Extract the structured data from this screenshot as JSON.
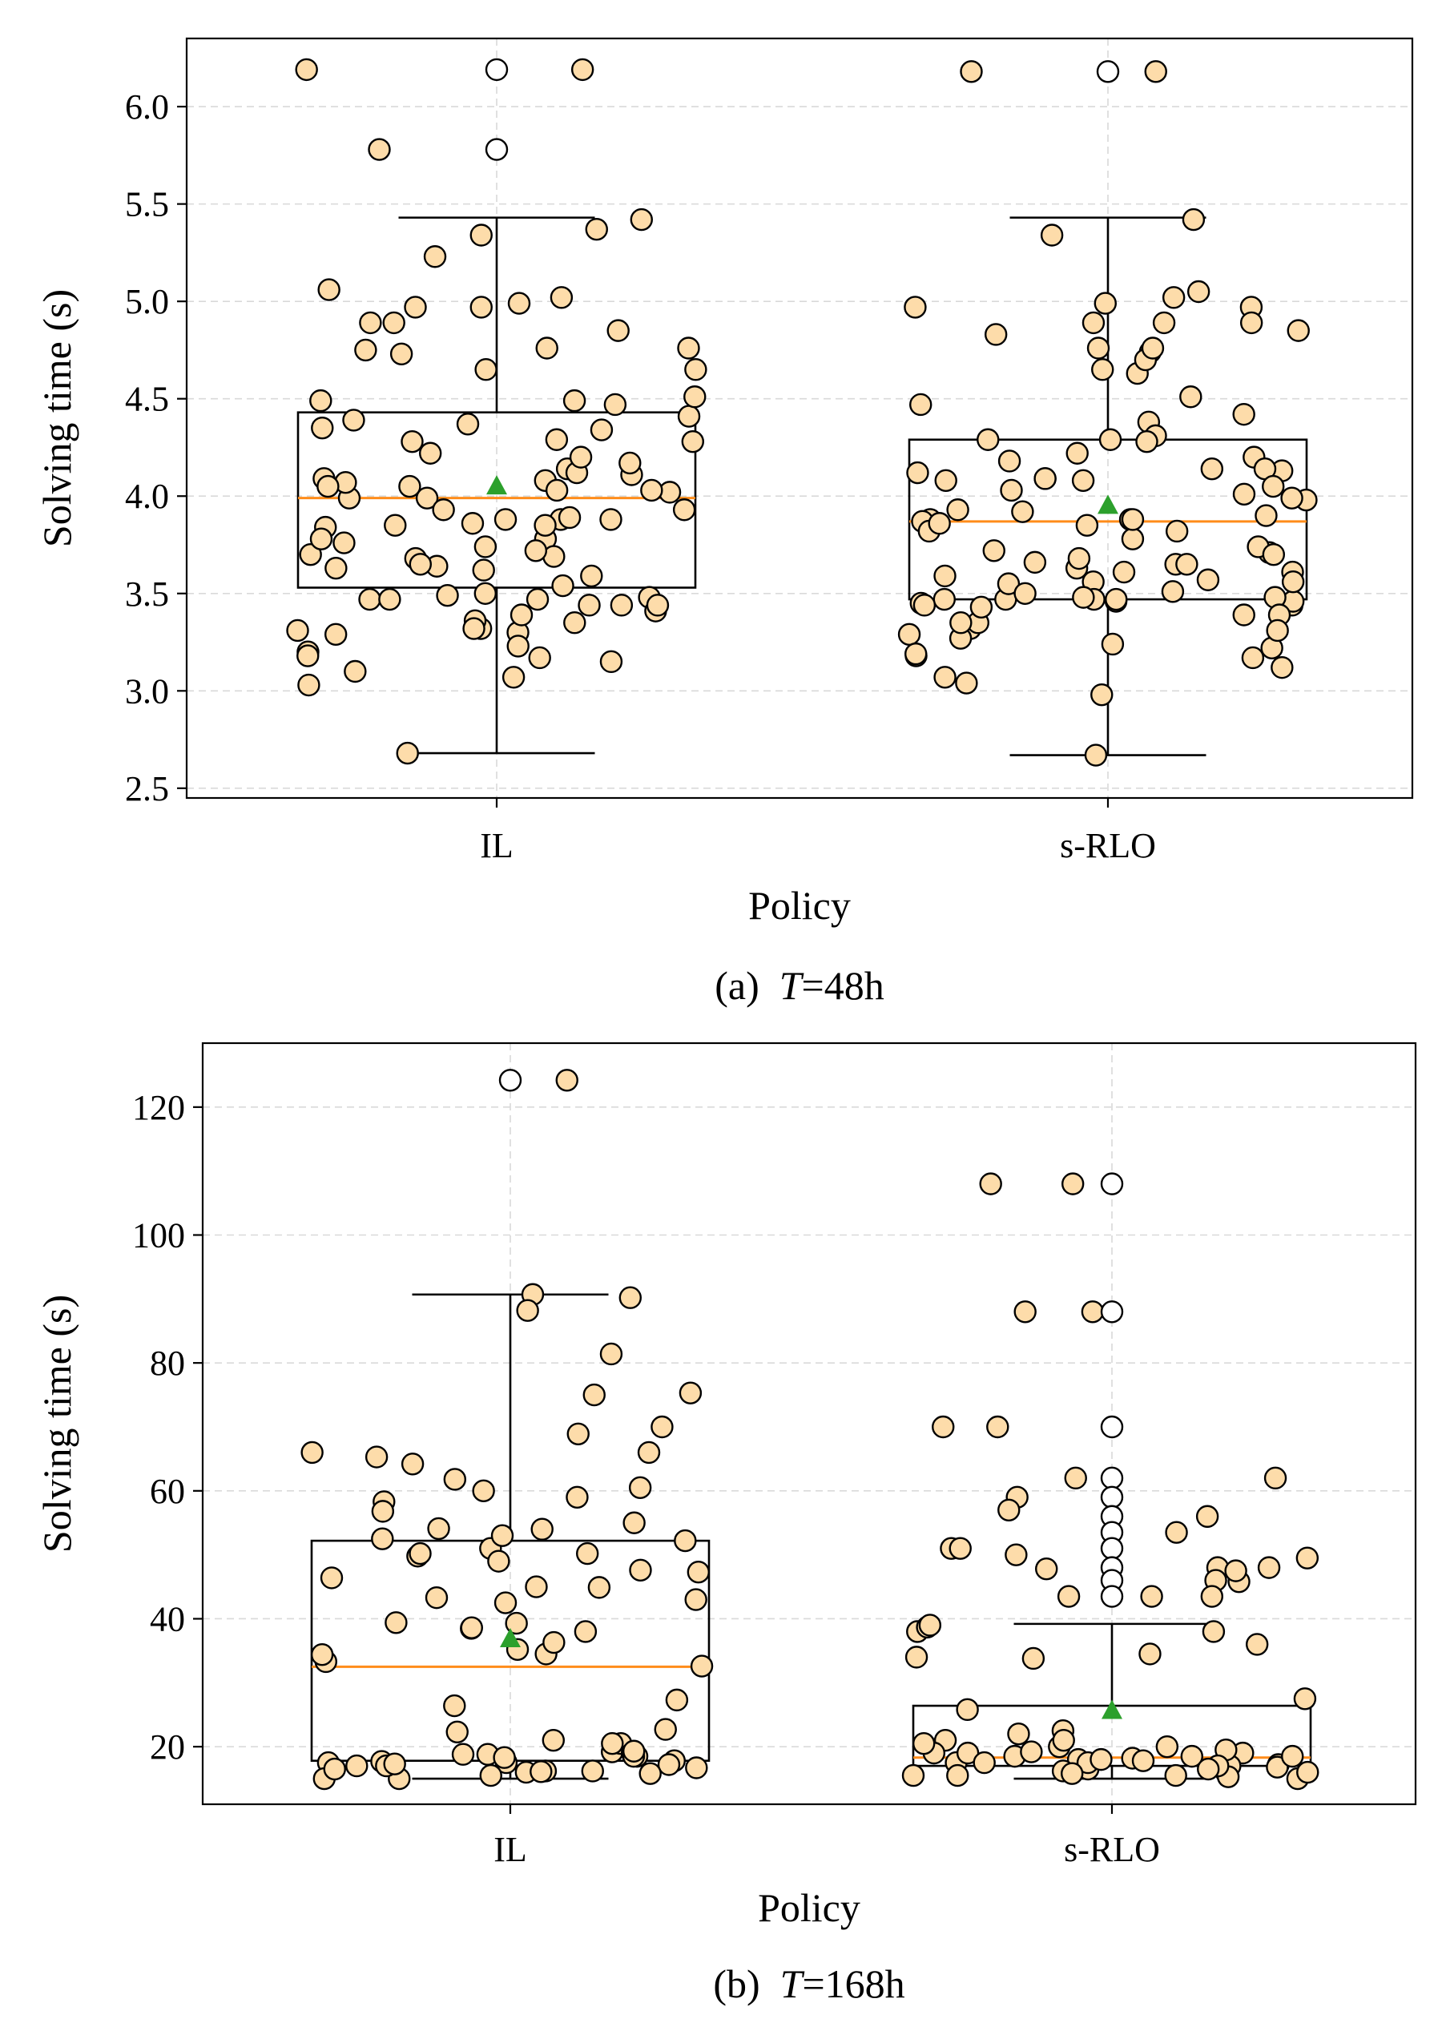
{
  "chart_data": [
    {
      "type": "box",
      "caption_prefix": "(a)  ",
      "caption_var": "T",
      "caption_suffix": "=48h",
      "xlabel": "Policy",
      "ylabel": "Solving time (s)",
      "ylim": [
        2.45,
        6.35
      ],
      "yticks": [
        "2.5",
        "3.0",
        "3.5",
        "4.0",
        "4.5",
        "5.0",
        "5.5",
        "6.0"
      ],
      "ytick_values": [
        2.5,
        3.0,
        3.5,
        4.0,
        4.5,
        5.0,
        5.5,
        6.0
      ],
      "grid": true,
      "categories": [
        "IL",
        "s-RLO"
      ],
      "boxes": [
        {
          "name": "IL",
          "whisker_low": 2.68,
          "q1": 3.53,
          "median": 3.99,
          "q3": 4.43,
          "whisker_high": 5.43,
          "mean": 4.05,
          "fliers": [
            6.19,
            5.78
          ],
          "points": [
            6.19,
            5.78,
            5.37,
            5.23,
            4.85,
            4.97,
            4.89,
            4.75,
            4.73,
            4.65,
            4.49,
            4.47,
            4.49,
            4.37,
            4.34,
            4.14,
            4.12,
            4.09,
            4.11,
            4.02,
            3.99,
            3.84,
            3.62,
            3.59,
            3.48,
            3.32,
            3.3,
            3.47,
            3.44,
            3.41,
            3.36,
            3.32,
            3.29,
            3.54,
            3.64,
            3.68,
            3.78,
            3.88,
            3.88,
            3.93,
            3.99,
            4.03,
            4.07,
            4.08,
            4.22,
            4.35,
            4.41,
            4.51,
            5.42,
            5.34,
            4.97,
            4.89,
            4.39,
            4.28,
            4.05,
            3.93,
            3.86,
            3.76,
            3.7,
            3.47,
            3.39,
            2.68,
            3.17,
            3.1,
            3.2,
            3.23,
            3.18,
            3.15,
            3.35,
            3.44,
            3.49,
            3.5,
            3.63,
            3.65,
            3.69,
            3.74,
            3.78,
            3.85,
            3.89,
            4.03,
            4.28,
            4.76,
            5.02,
            4.99,
            4.65,
            5.06,
            4.76,
            4.29,
            4.17,
            4.2,
            4.05,
            3.85,
            3.72,
            3.47,
            3.44,
            3.31,
            3.07,
            3.03,
            3.88,
            6.19
          ]
        },
        {
          "name": "s-RLO",
          "whisker_low": 2.67,
          "q1": 3.47,
          "median": 3.87,
          "q3": 4.29,
          "whisker_high": 5.43,
          "mean": 3.95,
          "fliers": [
            6.18
          ],
          "points": [
            5.05,
            4.97,
            4.85,
            4.99,
            4.89,
            4.76,
            4.74,
            4.63,
            4.47,
            4.18,
            4.14,
            4.12,
            4.09,
            4.13,
            4.01,
            3.93,
            3.85,
            3.61,
            3.59,
            3.63,
            3.57,
            3.46,
            3.47,
            3.44,
            3.47,
            3.32,
            3.27,
            3.46,
            3.48,
            3.45,
            3.51,
            3.55,
            3.61,
            3.56,
            3.65,
            3.71,
            3.35,
            3.29,
            3.24,
            3.22,
            3.39,
            3.47,
            2.67,
            3.74,
            3.88,
            3.87,
            3.92,
            3.98,
            4.08,
            4.08,
            4.22,
            4.42,
            4.51,
            4.83,
            4.97,
            5.42,
            5.34,
            6.18,
            4.29,
            4.38,
            4.31,
            4.28,
            4.7,
            3.56,
            3.47,
            3.99,
            3.88,
            3.9,
            3.82,
            3.65,
            3.5,
            3.48,
            3.18,
            3.12,
            3.17,
            3.19,
            2.98,
            3.35,
            3.39,
            3.66,
            3.7,
            3.68,
            3.78,
            3.82,
            3.86,
            4.03,
            4.29,
            4.65,
            4.89,
            5.02,
            4.89,
            4.76,
            4.2,
            4.14,
            4.05,
            4.09,
            3.88,
            3.72,
            3.44,
            3.43,
            3.31,
            3.07,
            3.04,
            6.18
          ]
        }
      ]
    },
    {
      "type": "box",
      "caption_prefix": "(b)  ",
      "caption_var": "T",
      "caption_suffix": "=168h",
      "xlabel": "Policy",
      "ylabel": "Solving time (s)",
      "ylim": [
        11,
        130
      ],
      "yticks": [
        "20",
        "40",
        "60",
        "80",
        "100",
        "120"
      ],
      "ytick_values": [
        20,
        40,
        60,
        80,
        100,
        120
      ],
      "grid": true,
      "categories": [
        "IL",
        "s-RLO"
      ],
      "boxes": [
        {
          "name": "IL",
          "whisker_low": 15,
          "q1": 17.8,
          "median": 32.5,
          "q3": 52.2,
          "whisker_high": 90.7,
          "mean": 36.8,
          "fliers": [
            124.2
          ],
          "points": [
            81.4,
            66.0,
            65.3,
            52.2,
            51.0,
            47.6,
            46.4,
            33.3,
            21.0,
            17.5,
            16.2,
            15.0,
            18.5,
            19.2,
            17.8,
            22.7,
            90.7,
            88.2,
            90.2,
            75.3,
            61.8,
            59.0,
            53.0,
            50.2,
            49.8,
            43.3,
            38.0,
            34.5,
            22.3,
            20.5,
            18.8,
            17.5,
            16.0,
            18.3,
            17.2,
            19.0,
            75.0,
            64.2,
            55.0,
            54.0,
            58.3,
            52.5,
            38.5,
            36.3,
            27.3,
            32.6,
            42.5,
            43.0,
            20.5,
            18.5,
            17.0,
            16.2,
            15.0,
            19.3,
            17.7,
            15.8,
            16.5,
            70.0,
            68.9,
            56.8,
            54.1,
            49.0,
            45.0,
            39.4,
            39.3,
            38.6,
            35.2,
            34.4,
            44.9,
            47.3,
            60.5,
            60.0,
            50.2,
            66.0,
            26.4,
            18.8,
            17.0,
            16.1,
            15.5,
            16.7,
            17.3,
            124.2
          ]
        },
        {
          "name": "s-RLO",
          "whisker_low": 15,
          "q1": 17.0,
          "median": 18.3,
          "q3": 26.4,
          "whisker_high": 39.2,
          "mean": 25.6,
          "fliers": [
            108.0,
            88.0,
            70.0,
            62.0,
            59.0,
            56.0,
            53.5,
            51.0,
            48.0,
            46.0,
            43.5
          ],
          "points": [
            48.0,
            45.8,
            43.5,
            21.0,
            17.5,
            15.5,
            18.0,
            16.5,
            22.5,
            19.0,
            17.0,
            88.0,
            51.0,
            50.0,
            49.5,
            47.8,
            33.8,
            38.0,
            19.0,
            17.5,
            16.0,
            15.5,
            18.5,
            17.2,
            62.0,
            34.0,
            22.0,
            20.0,
            18.0,
            16.8,
            15.5,
            19.2,
            108.0,
            88.0,
            70.0,
            62.0,
            59.0,
            56.0,
            53.5,
            51.0,
            48.0,
            46.0,
            43.5,
            36.0,
            20.0,
            18.5,
            17.0,
            15.0,
            16.0,
            19.5,
            70.0,
            57.0,
            43.5,
            38.7,
            38.0,
            34.5,
            27.5,
            21.0,
            19.0,
            17.5,
            16.2,
            15.3,
            18.2,
            20.5,
            17.8,
            47.5,
            39.0,
            25.8,
            18.5,
            17.0,
            16.5,
            15.8,
            108.0
          ]
        }
      ]
    }
  ]
}
